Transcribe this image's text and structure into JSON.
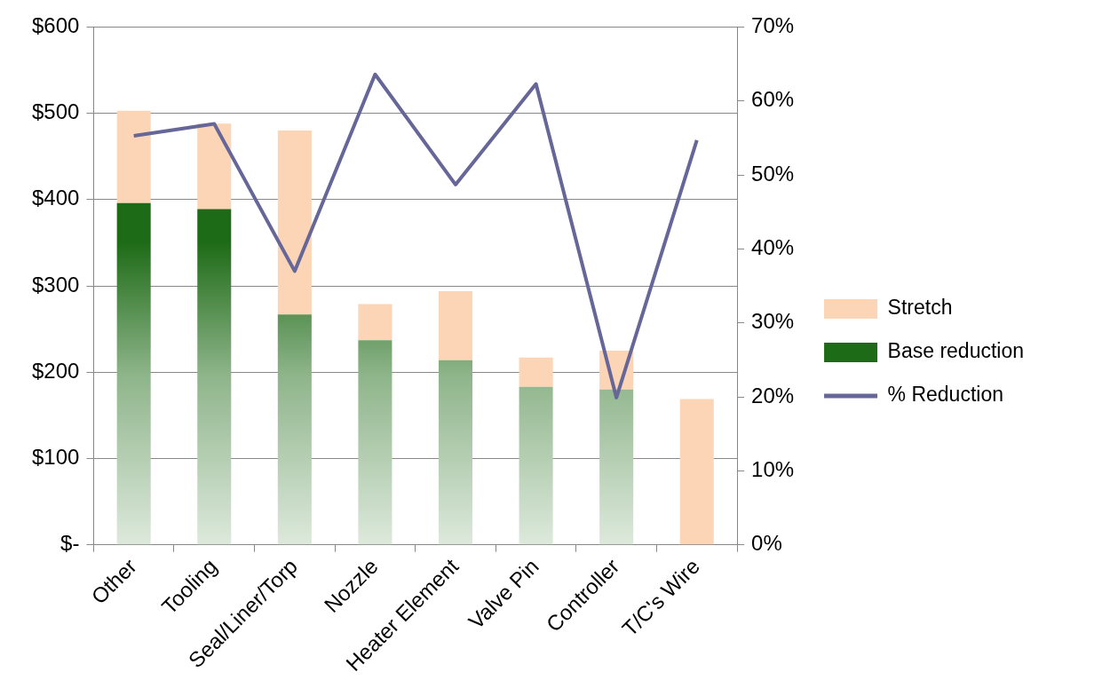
{
  "chart_data": {
    "type": "bar",
    "stacked": true,
    "categories": [
      "Other",
      "Tooling",
      "Seal/Liner/Torp",
      "Nozzle",
      "Heater Element",
      "Valve Pin",
      "Controller",
      "T/C's Wire"
    ],
    "series": [
      {
        "name": "Base reduction",
        "color": "#1e6b17",
        "values": [
          396,
          389,
          267,
          237,
          214,
          183,
          180,
          null
        ]
      },
      {
        "name": "Stretch",
        "color": "#fbd5b5",
        "values": [
          107,
          99,
          213,
          42,
          80,
          34,
          45,
          169
        ]
      },
      {
        "name": "% Reduction",
        "type": "line",
        "axis": "y2",
        "color": "#666699",
        "values": [
          55.3,
          56.9,
          37.0,
          63.6,
          48.7,
          62.3,
          19.9,
          54.7
        ]
      }
    ],
    "ylim": [
      0,
      600
    ],
    "yticks": [
      {
        "value": 0,
        "label": "$-"
      },
      {
        "value": 100,
        "label": "$100"
      },
      {
        "value": 200,
        "label": "$200"
      },
      {
        "value": 300,
        "label": "$300"
      },
      {
        "value": 400,
        "label": "$400"
      },
      {
        "value": 500,
        "label": "$500"
      },
      {
        "value": 600,
        "label": "$600"
      }
    ],
    "y2lim": [
      0,
      70
    ],
    "y2ticks": [
      {
        "value": 0,
        "label": "0%"
      },
      {
        "value": 10,
        "label": "10%"
      },
      {
        "value": 20,
        "label": "20%"
      },
      {
        "value": 30,
        "label": "30%"
      },
      {
        "value": 40,
        "label": "40%"
      },
      {
        "value": 50,
        "label": "50%"
      },
      {
        "value": 60,
        "label": "60%"
      },
      {
        "value": 70,
        "label": "70%"
      }
    ],
    "grid": "y",
    "legend": "right",
    "marker": "none",
    "line_style": "solid"
  }
}
